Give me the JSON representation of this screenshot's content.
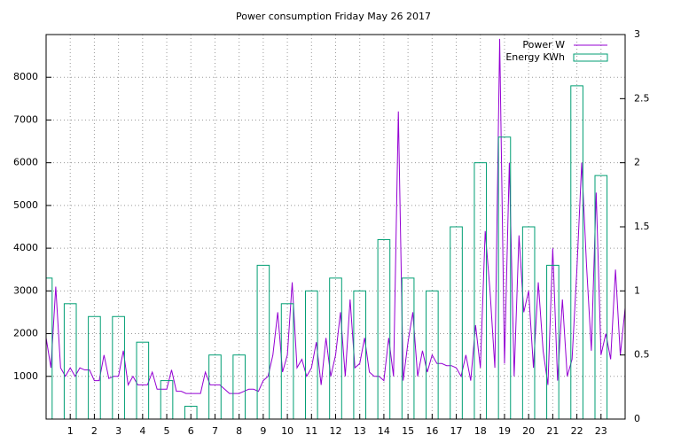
{
  "chart_data": {
    "type": "line-box",
    "title": "Power consumption Friday May 26 2017",
    "xlim": [
      0,
      24
    ],
    "xticks": [
      1,
      2,
      3,
      4,
      5,
      6,
      7,
      8,
      9,
      10,
      11,
      12,
      13,
      14,
      15,
      16,
      17,
      18,
      19,
      20,
      21,
      22,
      23
    ],
    "ylim": [
      0,
      9000
    ],
    "yticks": [
      1000,
      2000,
      3000,
      4000,
      5000,
      6000,
      7000,
      8000
    ],
    "y2lim": [
      0,
      3
    ],
    "y2ticks": [
      0,
      0.5,
      1,
      1.5,
      2,
      2.5,
      3
    ],
    "grid": true,
    "legend": "top-right",
    "series": [
      {
        "name": "Power W",
        "color": "#9400d3",
        "kind": "line",
        "x": [
          0,
          0.2,
          0.4,
          0.6,
          0.8,
          1,
          1.2,
          1.4,
          1.6,
          1.8,
          2,
          2.2,
          2.4,
          2.6,
          2.8,
          3,
          3.2,
          3.4,
          3.6,
          3.8,
          4,
          4.2,
          4.4,
          4.6,
          4.8,
          5,
          5.2,
          5.4,
          5.6,
          5.8,
          6,
          6.2,
          6.4,
          6.6,
          6.8,
          7,
          7.2,
          7.4,
          7.6,
          7.8,
          8,
          8.2,
          8.4,
          8.6,
          8.8,
          9,
          9.2,
          9.4,
          9.6,
          9.8,
          10,
          10.2,
          10.4,
          10.6,
          10.8,
          11,
          11.2,
          11.4,
          11.6,
          11.8,
          12,
          12.2,
          12.4,
          12.6,
          12.8,
          13,
          13.2,
          13.4,
          13.6,
          13.8,
          14,
          14.2,
          14.4,
          14.6,
          14.8,
          15,
          15.2,
          15.4,
          15.6,
          15.8,
          16,
          16.2,
          16.4,
          16.6,
          16.8,
          17,
          17.2,
          17.4,
          17.6,
          17.8,
          18,
          18.2,
          18.4,
          18.6,
          18.8,
          19,
          19.2,
          19.4,
          19.6,
          19.8,
          20,
          20.2,
          20.4,
          20.6,
          20.8,
          21,
          21.2,
          21.4,
          21.6,
          21.8,
          22,
          22.2,
          22.4,
          22.6,
          22.8,
          23,
          23.2,
          23.4,
          23.6,
          23.8,
          24
        ],
        "values": [
          1900,
          1200,
          3100,
          1200,
          1000,
          1200,
          1000,
          1200,
          1150,
          1150,
          900,
          900,
          1500,
          950,
          1000,
          1000,
          1600,
          800,
          1000,
          800,
          800,
          800,
          1100,
          700,
          700,
          700,
          1150,
          650,
          650,
          600,
          600,
          600,
          600,
          1100,
          800,
          800,
          800,
          700,
          600,
          600,
          600,
          650,
          700,
          700,
          650,
          900,
          1000,
          1500,
          2500,
          1100,
          1500,
          3200,
          1200,
          1400,
          1000,
          1200,
          1800,
          800,
          1900,
          1000,
          1500,
          2500,
          1000,
          2800,
          1200,
          1300,
          1900,
          1100,
          1000,
          1000,
          900,
          1900,
          1000,
          7200,
          900,
          1800,
          2500,
          1000,
          1600,
          1100,
          1500,
          1300,
          1300,
          1250,
          1250,
          1200,
          1000,
          1500,
          900,
          2200,
          1200,
          4400,
          3000,
          1200,
          8900,
          1300,
          6000,
          1000,
          4300,
          2500,
          3000,
          1200,
          3200,
          1600,
          800,
          4000,
          900,
          2800,
          1000,
          1400,
          3500,
          6000,
          3600,
          1600,
          5300,
          1500,
          2000,
          1400,
          3500,
          1500,
          2600
        ]
      },
      {
        "name": "Energy KWh",
        "color": "#009e73",
        "kind": "box",
        "axis": "y2",
        "x": [
          0,
          1,
          2,
          3,
          4,
          5,
          6,
          7,
          8,
          9,
          10,
          11,
          12,
          13,
          14,
          15,
          16,
          17,
          18,
          19,
          20,
          21,
          22,
          23
        ],
        "values": [
          1.1,
          0.9,
          0.8,
          0.8,
          0.6,
          0.3,
          0.1,
          0.5,
          0.5,
          1.2,
          0.9,
          1.0,
          1.1,
          1.0,
          1.4,
          1.1,
          1.0,
          1.5,
          2.0,
          2.2,
          1.5,
          1.2,
          2.6,
          1.9
        ]
      }
    ]
  }
}
